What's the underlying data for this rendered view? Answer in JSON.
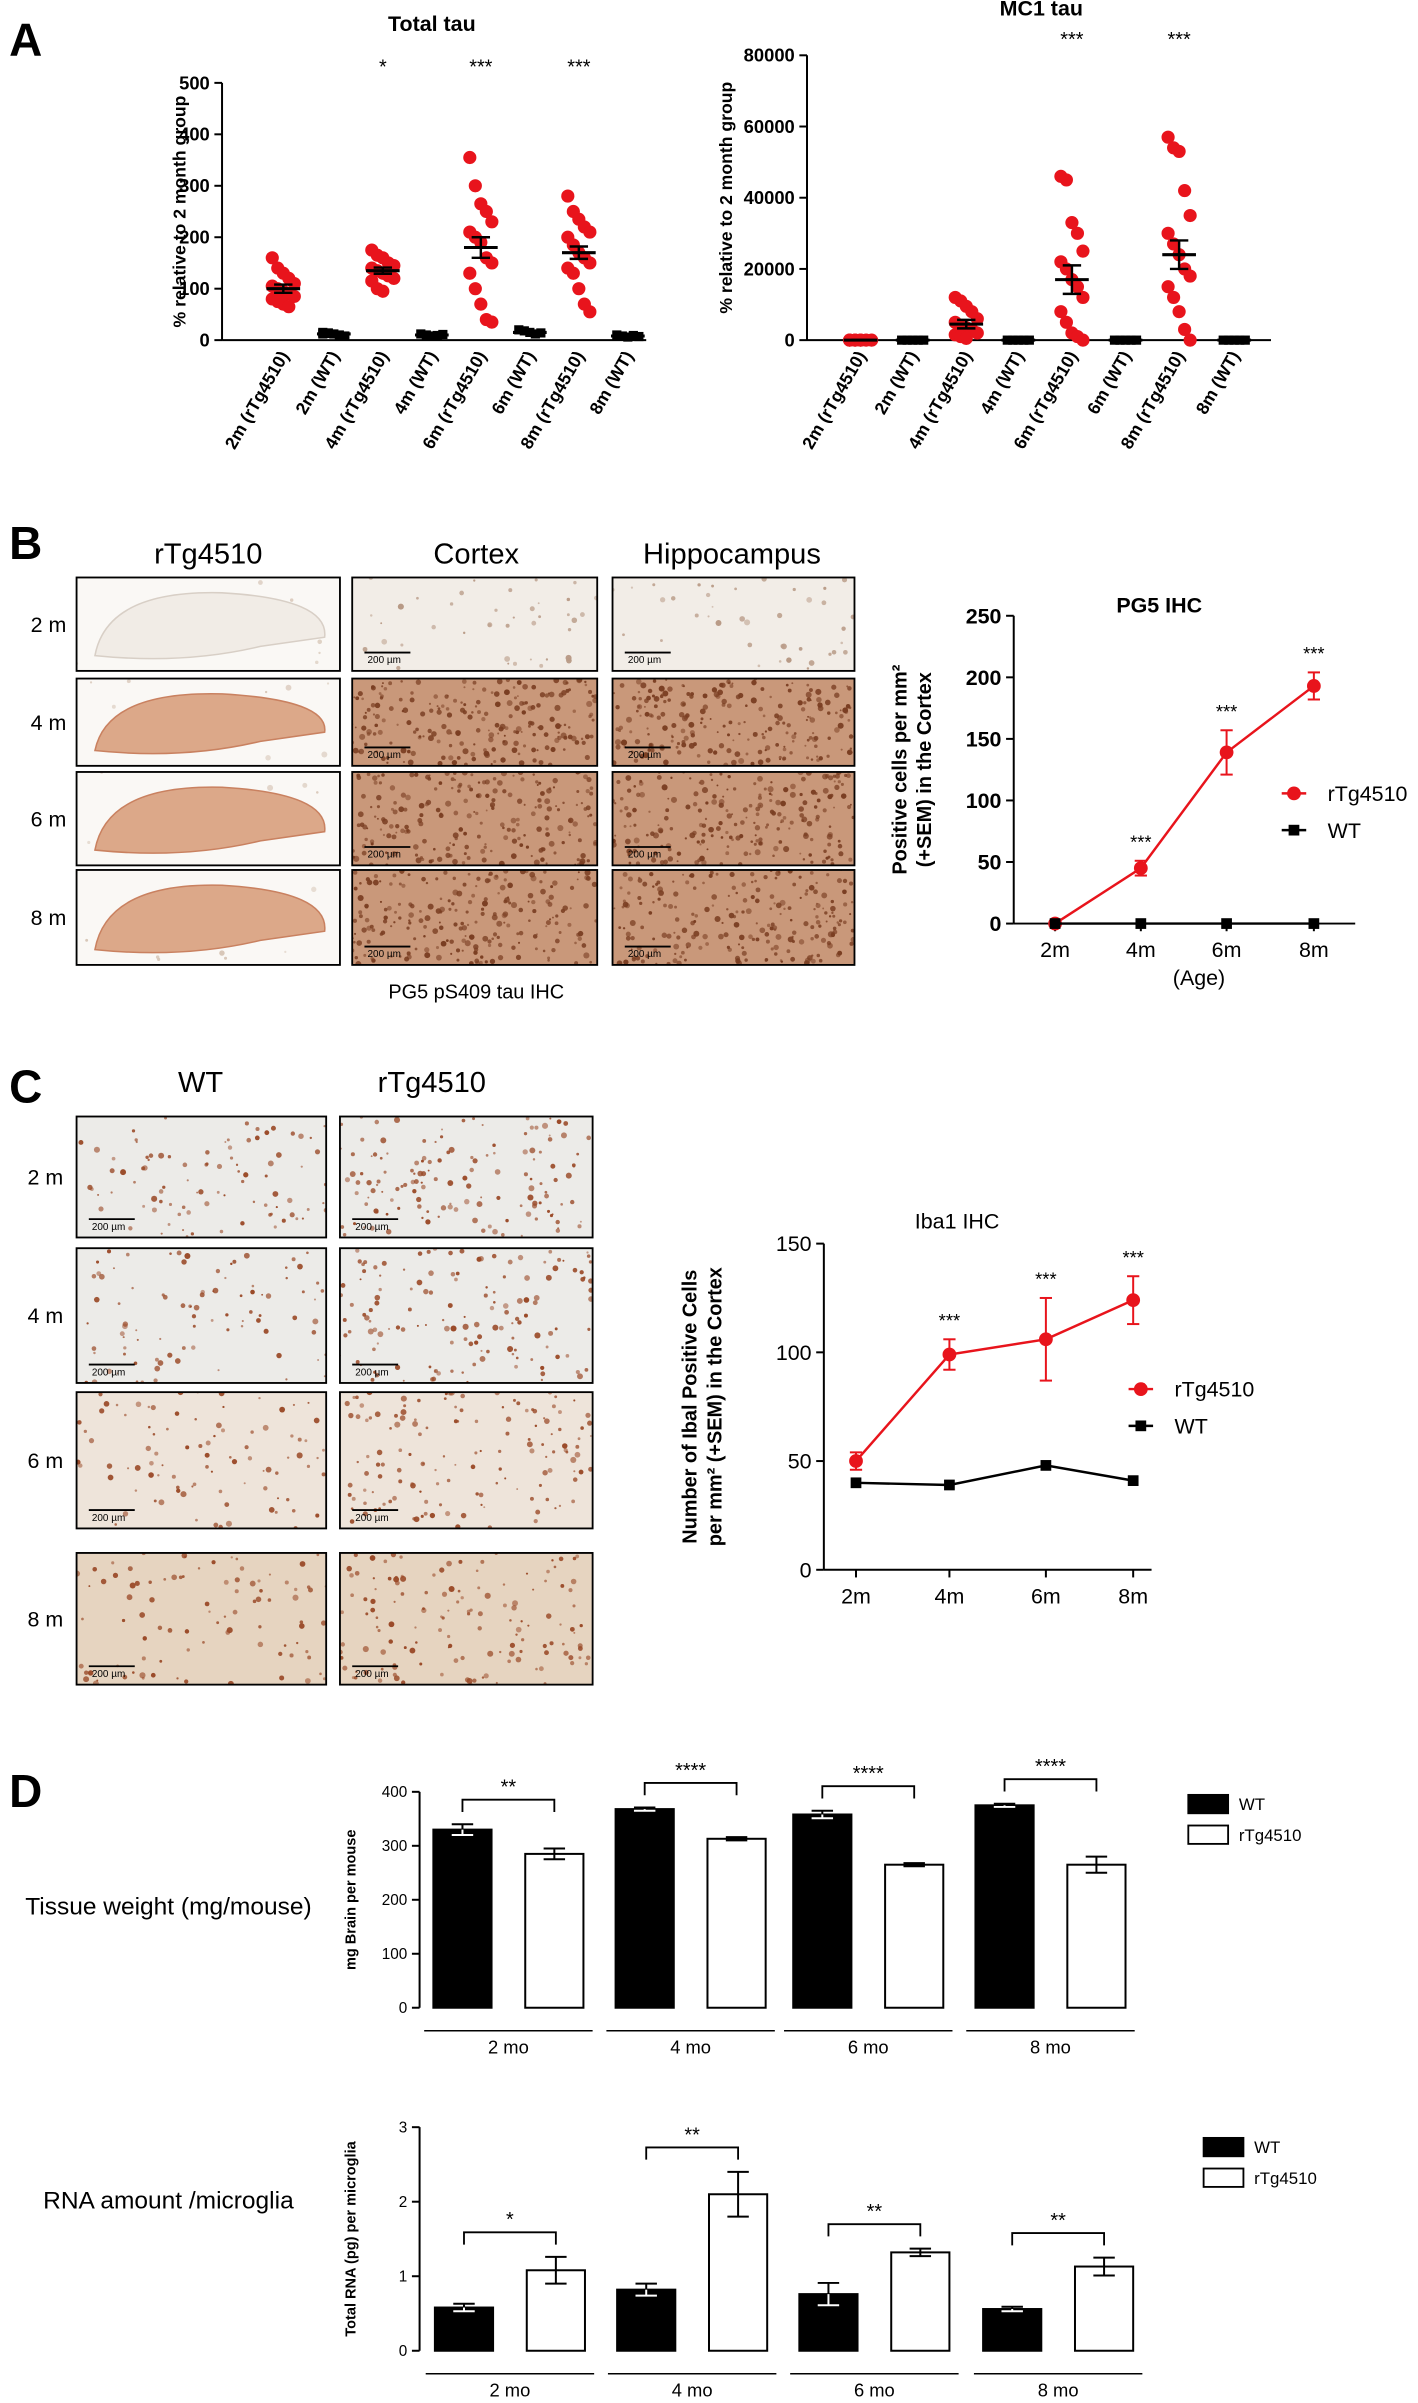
{
  "figure": {
    "panels": [
      "A",
      "B",
      "C",
      "D"
    ],
    "panel_b": {
      "columns": [
        "rTg4510",
        "Cortex",
        "Hippocampus"
      ],
      "rows": [
        "2 m",
        "4 m",
        "6 m",
        "8 m"
      ],
      "scale_bar": "200 µm",
      "caption": "PG5 pS409 tau IHC"
    },
    "panel_c": {
      "columns": [
        "WT",
        "rTg4510"
      ],
      "rows": [
        "2 m",
        "4 m",
        "6 m",
        "8 m"
      ],
      "scale_bar": "200 µm"
    }
  },
  "chart_data": [
    {
      "type": "dot",
      "title": "Total  tau",
      "ylabel": "% relative to 2 month group",
      "categories": [
        "2m (rTg4510)",
        "2m (WT)",
        "4m (rTg4510)",
        "4m (WT)",
        "6m (rTg4510)",
        "6m (WT)",
        "8m (rTg4510)",
        "8m (WT)"
      ],
      "colors": [
        "#e8141c",
        "#000000",
        "#e8141c",
        "#000000",
        "#e8141c",
        "#000000",
        "#e8141c",
        "#000000"
      ],
      "points": [
        [
          160,
          140,
          130,
          120,
          110,
          105,
          100,
          95,
          90,
          85,
          80,
          75,
          70,
          65
        ],
        [
          15,
          13,
          12,
          10,
          8,
          12,
          14
        ],
        [
          175,
          165,
          160,
          150,
          145,
          140,
          135,
          130,
          125,
          120,
          115,
          100,
          95
        ],
        [
          12,
          10,
          8,
          9,
          11
        ],
        [
          355,
          300,
          265,
          250,
          230,
          210,
          200,
          190,
          160,
          150,
          130,
          100,
          70,
          40,
          35
        ],
        [
          20,
          18,
          15,
          12,
          14
        ],
        [
          280,
          250,
          235,
          220,
          210,
          200,
          185,
          170,
          160,
          150,
          140,
          130,
          100,
          70,
          55
        ],
        [
          10,
          8,
          6,
          9,
          7
        ]
      ],
      "means": [
        100,
        12,
        135,
        10,
        180,
        15,
        170,
        8
      ],
      "sems": [
        8,
        2,
        6,
        2,
        20,
        2,
        12,
        1
      ],
      "annotations": [
        null,
        null,
        "*",
        null,
        "***",
        null,
        "***",
        null
      ],
      "ylim": [
        0,
        500
      ],
      "yticks": [
        0,
        100,
        200,
        300,
        400,
        500
      ]
    },
    {
      "type": "dot",
      "title": "MC1 tau",
      "ylabel": "% relative to 2 month group",
      "categories": [
        "2m (rTg4510)",
        "2m (WT)",
        "4m (rTg4510)",
        "4m (WT)",
        "6m (rTg4510)",
        "6m (WT)",
        "8m (rTg4510)",
        "8m (WT)"
      ],
      "colors": [
        "#e8141c",
        "#000000",
        "#e8141c",
        "#000000",
        "#e8141c",
        "#000000",
        "#e8141c",
        "#000000"
      ],
      "points": [
        [
          0,
          0,
          0,
          0,
          0,
          0,
          0,
          0
        ],
        [
          0,
          0,
          0,
          0,
          0
        ],
        [
          12000,
          11000,
          9500,
          8000,
          6000,
          5000,
          4000,
          3500,
          3000,
          2000,
          1500,
          1000,
          500
        ],
        [
          0,
          0,
          0,
          0,
          0
        ],
        [
          46000,
          45000,
          33000,
          30000,
          25000,
          22000,
          20000,
          17000,
          15000,
          12000,
          8000,
          5000,
          2000,
          1000,
          0
        ],
        [
          0,
          0,
          0,
          0,
          0
        ],
        [
          57000,
          54000,
          53000,
          42000,
          35000,
          30000,
          27000,
          24000,
          20000,
          18000,
          15000,
          12000,
          8000,
          3000,
          0
        ],
        [
          0,
          0,
          0,
          0,
          0
        ]
      ],
      "means": [
        0,
        0,
        4500,
        0,
        17000,
        0,
        24000,
        0
      ],
      "sems": [
        0,
        0,
        1200,
        0,
        4000,
        0,
        4000,
        0
      ],
      "annotations": [
        null,
        null,
        null,
        null,
        "***",
        null,
        "***",
        null
      ],
      "ylim": [
        0,
        80000
      ],
      "yticks": [
        0,
        20000,
        40000,
        60000,
        80000
      ]
    },
    {
      "type": "line",
      "title": "PG5 IHC",
      "ylabel": [
        "Positive cells per mm²",
        "(+SEM) in the Cortex"
      ],
      "xlabel": "(Age)",
      "categories": [
        "2m",
        "4m",
        "6m",
        "8m"
      ],
      "series": [
        {
          "name": "rTg4510",
          "color": "#e8141c",
          "marker": "circle",
          "values": [
            0,
            45,
            139,
            193
          ],
          "errors": [
            0,
            6,
            18,
            11
          ]
        },
        {
          "name": "WT",
          "color": "#000000",
          "marker": "square",
          "values": [
            0,
            0,
            0,
            0
          ]
        }
      ],
      "annotations": [
        null,
        "***",
        "***",
        "***"
      ],
      "ylim": [
        0,
        250
      ],
      "yticks": [
        0,
        50,
        100,
        150,
        200,
        250
      ]
    },
    {
      "type": "line",
      "title": "Iba1 IHC",
      "ylabel": [
        "Number of Ibal Positive Cells",
        "per mm² (+SEM) in the Cortex"
      ],
      "categories": [
        "2m",
        "4m",
        "6m",
        "8m"
      ],
      "series": [
        {
          "name": "rTg4510",
          "color": "#e8141c",
          "marker": "circle",
          "values": [
            50,
            99,
            106,
            124
          ],
          "errors": [
            4,
            7,
            19,
            11
          ]
        },
        {
          "name": "WT",
          "color": "#000000",
          "marker": "square",
          "values": [
            40,
            39,
            48,
            41
          ]
        }
      ],
      "annotations": [
        null,
        "***",
        "***",
        "***"
      ],
      "ylim": [
        0,
        150
      ],
      "yticks": [
        0,
        50,
        100,
        150
      ]
    },
    {
      "type": "bar",
      "label": "Tissue weight (mg/mouse)",
      "ylabel": "mg Brain per mouse",
      "categories": [
        "2 mo",
        "4 mo",
        "6 mo",
        "8 mo"
      ],
      "series": [
        {
          "name": "WT",
          "color": "#000000",
          "values": [
            330,
            368,
            358,
            375
          ],
          "errors": [
            10,
            3,
            7,
            3
          ]
        },
        {
          "name": "rTg4510",
          "color": "#ffffff",
          "values": [
            285,
            313,
            265,
            265
          ],
          "errors": [
            10,
            3,
            3,
            15
          ]
        }
      ],
      "significance": [
        "**",
        "****",
        "****",
        "****"
      ],
      "ylim": [
        0,
        400
      ],
      "yticks": [
        0,
        100,
        200,
        300,
        400
      ]
    },
    {
      "type": "bar",
      "label": "RNA amount /microglia",
      "ylabel": "Total RNA (pg) per microglia",
      "categories": [
        "2 mo",
        "4 mo",
        "6 mo",
        "8 mo"
      ],
      "series": [
        {
          "name": "WT",
          "color": "#000000",
          "values": [
            0.58,
            0.82,
            0.76,
            0.56
          ],
          "errors": [
            0.05,
            0.08,
            0.15,
            0.03
          ]
        },
        {
          "name": "rTg4510",
          "color": "#ffffff",
          "values": [
            1.08,
            2.1,
            1.32,
            1.13
          ],
          "errors": [
            0.18,
            0.3,
            0.05,
            0.12
          ]
        }
      ],
      "significance": [
        "*",
        "**",
        "**",
        "**"
      ],
      "ylim": [
        0,
        3
      ],
      "yticks": [
        0,
        1,
        2,
        3
      ]
    }
  ]
}
